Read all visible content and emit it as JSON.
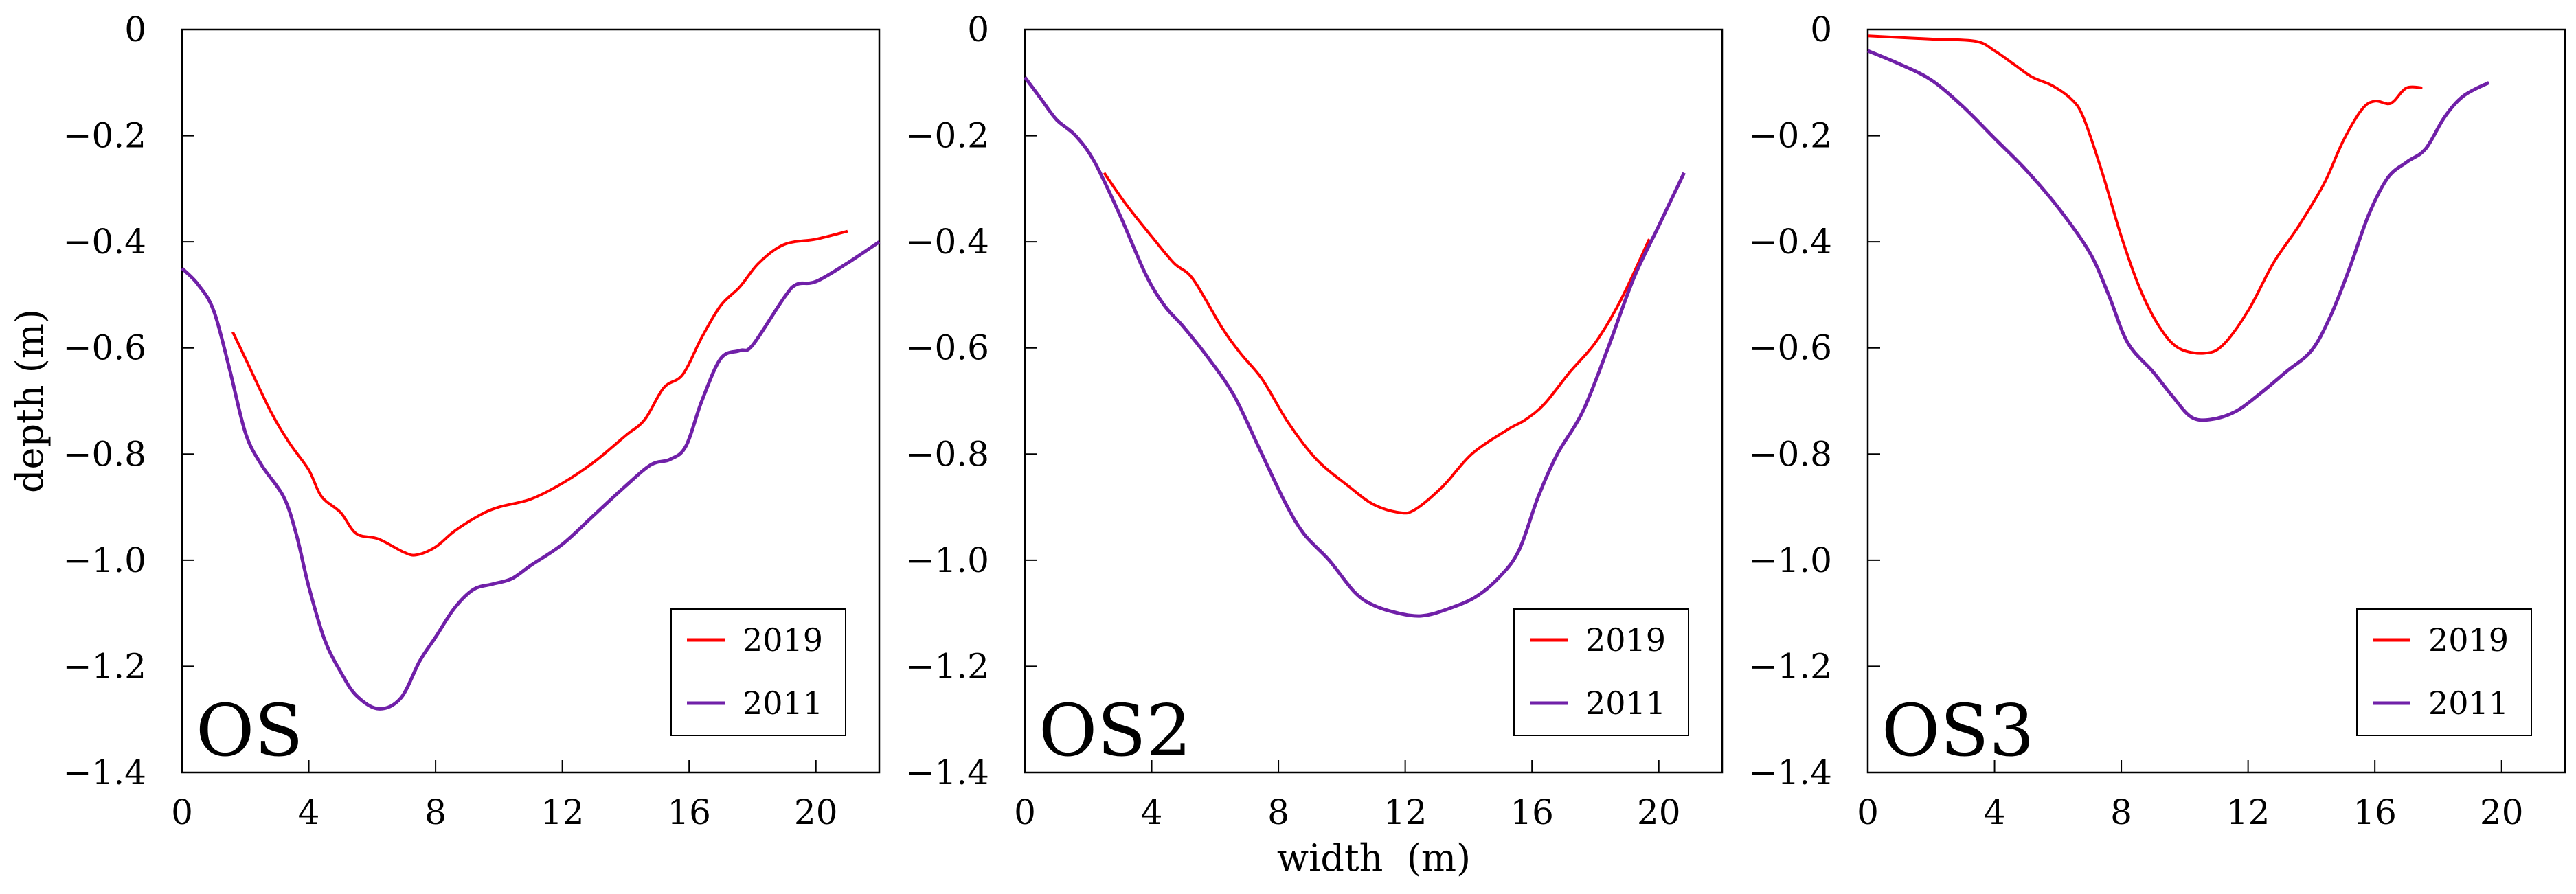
{
  "chart_data": {
    "shared": {
      "type": "line",
      "xlabel": "width  (m)",
      "ylabel": "depth (m)",
      "xlim": [
        0,
        22
      ],
      "ylim": [
        -1.4,
        0
      ],
      "xticks": [
        "0",
        "4",
        "8",
        "12",
        "16",
        "20"
      ],
      "xtick_values": [
        0,
        4,
        8,
        12,
        16,
        20
      ],
      "yticks": [
        "0",
        "−0.2",
        "−0.4",
        "−0.6",
        "−0.8",
        "−1.0",
        "−1.2",
        "−1.4"
      ],
      "ytick_values": [
        0,
        -0.2,
        -0.4,
        -0.6,
        -0.8,
        -1.0,
        -1.2,
        -1.4
      ],
      "grid": false,
      "legend_placement": "bottom-right"
    },
    "panels": [
      {
        "title": "OS",
        "series": [
          {
            "name": "2019",
            "color": "#ff0000",
            "points": [
              [
                1.6,
                -0.57
              ],
              [
                2,
                -0.62
              ],
              [
                2.8,
                -0.72
              ],
              [
                3.4,
                -0.78
              ],
              [
                4,
                -0.83
              ],
              [
                4.4,
                -0.88
              ],
              [
                5,
                -0.91
              ],
              [
                5.5,
                -0.95
              ],
              [
                6.2,
                -0.96
              ],
              [
                7,
                -0.985
              ],
              [
                7.4,
                -0.99
              ],
              [
                8,
                -0.975
              ],
              [
                8.6,
                -0.945
              ],
              [
                9.4,
                -0.915
              ],
              [
                10,
                -0.9
              ],
              [
                11,
                -0.885
              ],
              [
                12,
                -0.855
              ],
              [
                13,
                -0.815
              ],
              [
                14,
                -0.765
              ],
              [
                14.6,
                -0.735
              ],
              [
                15.2,
                -0.675
              ],
              [
                15.8,
                -0.65
              ],
              [
                16.4,
                -0.58
              ],
              [
                17,
                -0.52
              ],
              [
                17.6,
                -0.485
              ],
              [
                18.2,
                -0.44
              ],
              [
                19,
                -0.405
              ],
              [
                20,
                -0.395
              ],
              [
                21,
                -0.38
              ]
            ]
          },
          {
            "name": "2011",
            "color": "#7020a8",
            "points": [
              [
                0,
                -0.45
              ],
              [
                0.5,
                -0.48
              ],
              [
                1,
                -0.53
              ],
              [
                1.5,
                -0.64
              ],
              [
                2,
                -0.76
              ],
              [
                2.5,
                -0.82
              ],
              [
                3.2,
                -0.88
              ],
              [
                3.6,
                -0.95
              ],
              [
                4,
                -1.05
              ],
              [
                4.5,
                -1.15
              ],
              [
                5,
                -1.21
              ],
              [
                5.5,
                -1.255
              ],
              [
                6.2,
                -1.28
              ],
              [
                6.9,
                -1.26
              ],
              [
                7.5,
                -1.19
              ],
              [
                8,
                -1.145
              ],
              [
                8.6,
                -1.09
              ],
              [
                9.2,
                -1.055
              ],
              [
                9.8,
                -1.045
              ],
              [
                10.4,
                -1.035
              ],
              [
                11,
                -1.01
              ],
              [
                12,
                -0.97
              ],
              [
                13,
                -0.915
              ],
              [
                14,
                -0.86
              ],
              [
                14.8,
                -0.82
              ],
              [
                15.4,
                -0.81
              ],
              [
                15.9,
                -0.785
              ],
              [
                16.4,
                -0.7
              ],
              [
                17,
                -0.62
              ],
              [
                17.6,
                -0.605
              ],
              [
                18,
                -0.595
              ],
              [
                19,
                -0.505
              ],
              [
                19.4,
                -0.48
              ],
              [
                20,
                -0.475
              ],
              [
                21,
                -0.44
              ],
              [
                22,
                -0.4
              ]
            ]
          }
        ]
      },
      {
        "title": "OS2",
        "series": [
          {
            "name": "2019",
            "color": "#ff0000",
            "points": [
              [
                2.5,
                -0.27
              ],
              [
                3.2,
                -0.33
              ],
              [
                4,
                -0.39
              ],
              [
                4.7,
                -0.44
              ],
              [
                5.3,
                -0.47
              ],
              [
                6.2,
                -0.56
              ],
              [
                6.8,
                -0.61
              ],
              [
                7.5,
                -0.66
              ],
              [
                8.3,
                -0.74
              ],
              [
                9.2,
                -0.81
              ],
              [
                10.2,
                -0.86
              ],
              [
                11,
                -0.895
              ],
              [
                11.8,
                -0.91
              ],
              [
                12.3,
                -0.905
              ],
              [
                13.2,
                -0.86
              ],
              [
                14.1,
                -0.8
              ],
              [
                15.2,
                -0.755
              ],
              [
                15.8,
                -0.735
              ],
              [
                16.4,
                -0.705
              ],
              [
                17.2,
                -0.645
              ],
              [
                18,
                -0.59
              ],
              [
                18.8,
                -0.51
              ],
              [
                19.7,
                -0.395
              ]
            ]
          },
          {
            "name": "2011",
            "color": "#7020a8",
            "points": [
              [
                0,
                -0.09
              ],
              [
                0.5,
                -0.13
              ],
              [
                1,
                -0.17
              ],
              [
                1.6,
                -0.2
              ],
              [
                2.2,
                -0.25
              ],
              [
                3,
                -0.35
              ],
              [
                3.8,
                -0.46
              ],
              [
                4.4,
                -0.52
              ],
              [
                5,
                -0.56
              ],
              [
                5.8,
                -0.62
              ],
              [
                6.6,
                -0.69
              ],
              [
                7.4,
                -0.79
              ],
              [
                8.2,
                -0.89
              ],
              [
                8.8,
                -0.95
              ],
              [
                9.6,
                -1.0
              ],
              [
                10.4,
                -1.06
              ],
              [
                11,
                -1.085
              ],
              [
                11.8,
                -1.1
              ],
              [
                12.5,
                -1.105
              ],
              [
                13.2,
                -1.095
              ],
              [
                14.2,
                -1.07
              ],
              [
                15,
                -1.03
              ],
              [
                15.6,
                -0.98
              ],
              [
                16.2,
                -0.88
              ],
              [
                16.8,
                -0.8
              ],
              [
                17.6,
                -0.72
              ],
              [
                18.4,
                -0.6
              ],
              [
                19.2,
                -0.47
              ],
              [
                20,
                -0.37
              ],
              [
                20.8,
                -0.27
              ]
            ]
          }
        ]
      },
      {
        "title": "OS3",
        "series": [
          {
            "name": "2019",
            "color": "#ff0000",
            "points": [
              [
                0,
                -0.012
              ],
              [
                1,
                -0.015
              ],
              [
                2,
                -0.018
              ],
              [
                3.4,
                -0.022
              ],
              [
                4,
                -0.04
              ],
              [
                4.6,
                -0.065
              ],
              [
                5.2,
                -0.09
              ],
              [
                5.8,
                -0.105
              ],
              [
                6.4,
                -0.13
              ],
              [
                6.8,
                -0.165
              ],
              [
                7.4,
                -0.27
              ],
              [
                8,
                -0.39
              ],
              [
                8.6,
                -0.49
              ],
              [
                9.2,
                -0.56
              ],
              [
                9.8,
                -0.6
              ],
              [
                10.6,
                -0.61
              ],
              [
                11.2,
                -0.595
              ],
              [
                12,
                -0.53
              ],
              [
                12.8,
                -0.44
              ],
              [
                13.6,
                -0.37
              ],
              [
                14.4,
                -0.29
              ],
              [
                15,
                -0.21
              ],
              [
                15.6,
                -0.15
              ],
              [
                16,
                -0.135
              ],
              [
                16.4,
                -0.14
              ],
              [
                16.6,
                -0.135
              ],
              [
                17,
                -0.11
              ],
              [
                17.5,
                -0.11
              ]
            ]
          },
          {
            "name": "2011",
            "color": "#7020a8",
            "points": [
              [
                0,
                -0.04
              ],
              [
                1,
                -0.065
              ],
              [
                2,
                -0.095
              ],
              [
                3,
                -0.145
              ],
              [
                4,
                -0.205
              ],
              [
                5,
                -0.265
              ],
              [
                6,
                -0.335
              ],
              [
                7,
                -0.42
              ],
              [
                7.6,
                -0.5
              ],
              [
                8.2,
                -0.59
              ],
              [
                9,
                -0.645
              ],
              [
                9.6,
                -0.69
              ],
              [
                10.2,
                -0.73
              ],
              [
                10.8,
                -0.735
              ],
              [
                11.6,
                -0.72
              ],
              [
                12.4,
                -0.685
              ],
              [
                13.2,
                -0.645
              ],
              [
                14,
                -0.605
              ],
              [
                14.6,
                -0.54
              ],
              [
                15.2,
                -0.45
              ],
              [
                15.8,
                -0.35
              ],
              [
                16.4,
                -0.28
              ],
              [
                17,
                -0.25
              ],
              [
                17.6,
                -0.225
              ],
              [
                18.2,
                -0.165
              ],
              [
                18.8,
                -0.125
              ],
              [
                19.6,
                -0.1
              ]
            ]
          }
        ]
      }
    ]
  }
}
